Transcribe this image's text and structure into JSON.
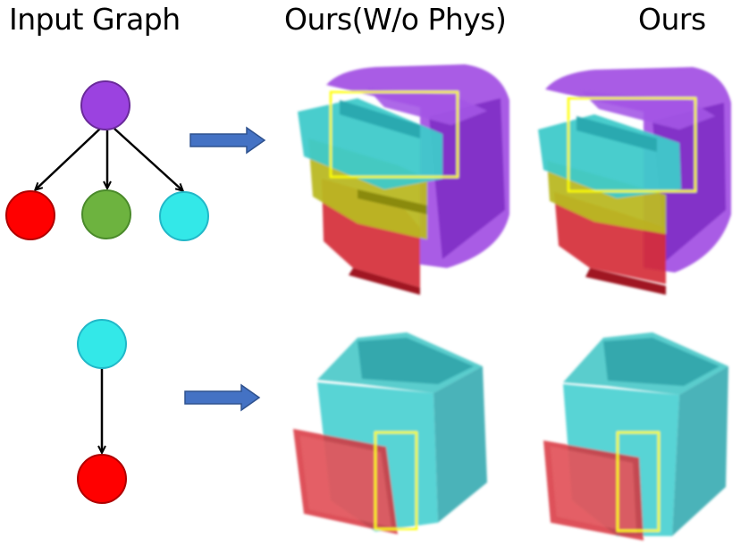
{
  "headers": {
    "input_graph": "Input Graph",
    "without_phys": "Ours(W/o Phys)",
    "ours": "Ours"
  },
  "colors": {
    "purple": "#9b42e0",
    "red": "#ff0000",
    "green": "#6db33f",
    "cyan": "#33e8e8",
    "arrow_blue": "#4472c4",
    "highlight_box": "#ffff00",
    "body_cyan": "#3cc4c4",
    "body_purple": "#8a2bd0",
    "body_olive": "#b5b51e",
    "body_red": "#c8202a"
  },
  "rows": [
    {
      "graph": {
        "root": "purple",
        "children": [
          "red",
          "green",
          "cyan"
        ]
      },
      "object": "cabinet with three drawers",
      "icons": [
        "input-graph-icon",
        "arrow-right-icon",
        "cabinet-render-icon"
      ]
    },
    {
      "graph": {
        "root": "cyan",
        "children": [
          "red"
        ]
      },
      "object": "box with hinged door",
      "icons": [
        "input-graph-icon",
        "arrow-right-icon",
        "box-render-icon"
      ]
    }
  ]
}
